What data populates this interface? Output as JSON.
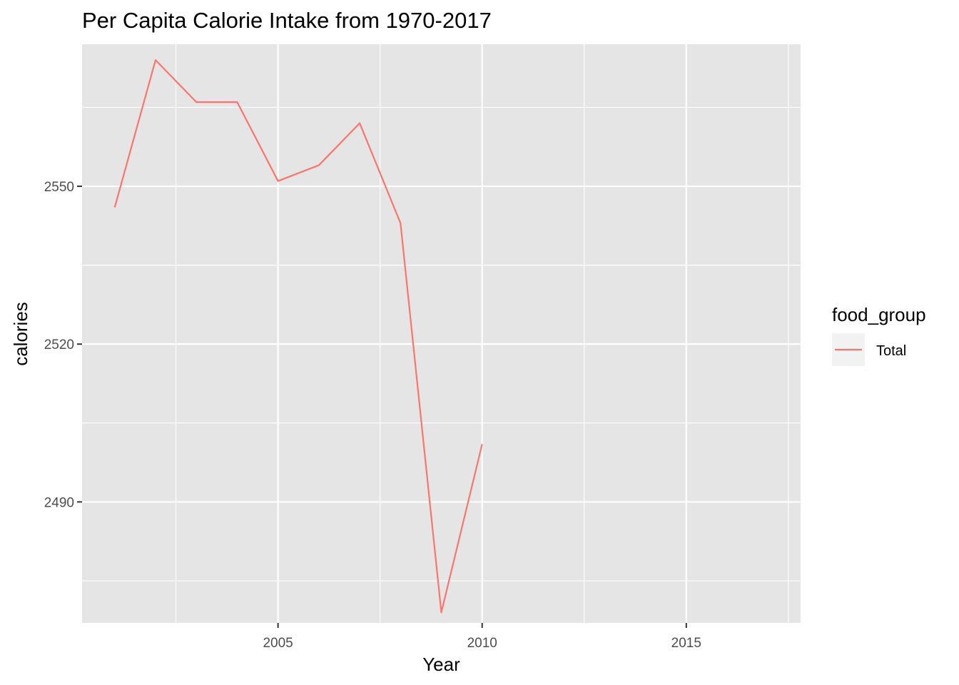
{
  "chart_data": {
    "type": "line",
    "title": "Per Capita Calorie Intake from 1970-2017",
    "xlabel": "Year",
    "ylabel": "calories",
    "xlim": [
      2000.2,
      2017.8
    ],
    "ylim": [
      2467,
      2577
    ],
    "x_ticks": [
      2005,
      2010,
      2015
    ],
    "x_tick_labels": [
      "2005",
      "2010",
      "2015"
    ],
    "x_minor_ticks": [
      2002.5,
      2007.5,
      2012.5,
      2017.5
    ],
    "y_ticks": [
      2490,
      2520,
      2550
    ],
    "y_tick_labels": [
      "2490",
      "2520",
      "2550"
    ],
    "y_minor_ticks": [
      2475,
      2505,
      2535,
      2565
    ],
    "grid": true,
    "background": "#e5e5e5",
    "legend": {
      "title": "food_group",
      "position": "right",
      "entries": [
        "Total"
      ]
    },
    "series": [
      {
        "name": "Total",
        "color": "#f8766d",
        "x": [
          2001,
          2002,
          2003,
          2004,
          2005,
          2006,
          2007,
          2008,
          2009,
          2010
        ],
        "values": [
          2546,
          2574,
          2566,
          2566,
          2551,
          2554,
          2562,
          2543,
          2469,
          2501
        ]
      }
    ]
  }
}
